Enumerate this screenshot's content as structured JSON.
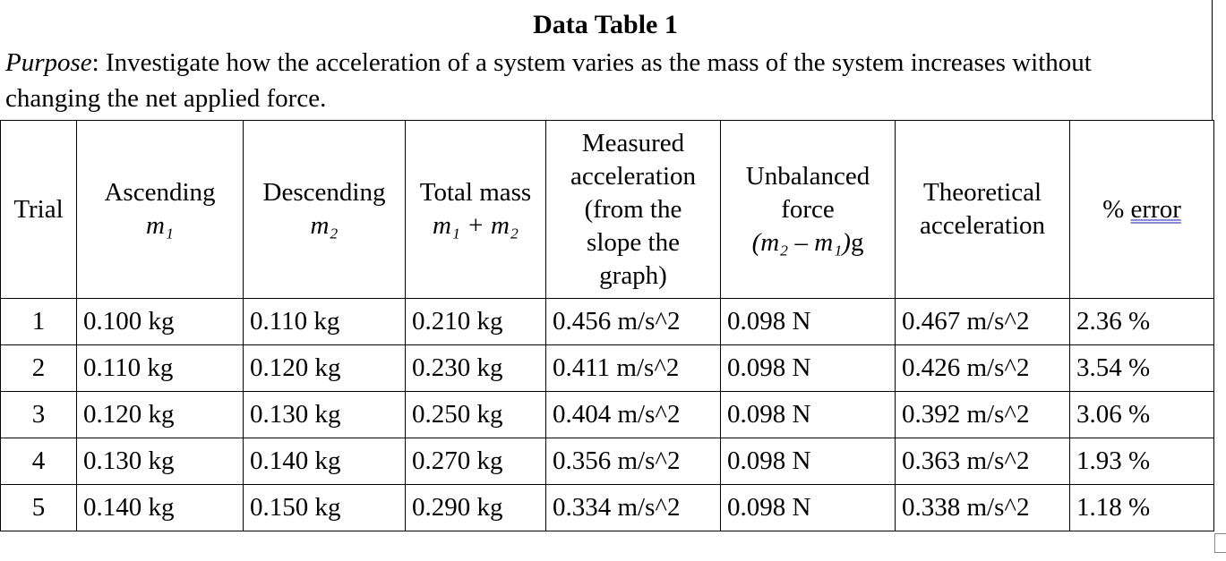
{
  "title": "Data Table 1",
  "purpose": {
    "label": "Purpose",
    "text": ": Investigate how the acceleration of a system varies as the mass of the system increases without changing the net applied force."
  },
  "headers": {
    "trial": "Trial",
    "ascending": {
      "line1": "Ascending",
      "symbol": "m₁"
    },
    "descending": {
      "line1": "Descending",
      "symbol": "m₂"
    },
    "total": {
      "line1": "Total mass",
      "symbol": "m₁ + m₂"
    },
    "measured": {
      "line1": "Measured",
      "line2": "acceleration",
      "line3": "(from the",
      "line4": "slope the",
      "line5": "graph)"
    },
    "unbalanced": {
      "line1": "Unbalanced",
      "line2": "force",
      "formula_a": "(m₂ – m₁)",
      "formula_g": "g"
    },
    "theoretical": {
      "line1": "Theoretical",
      "line2": "acceleration"
    },
    "error": {
      "pct": "% ",
      "word": "error"
    }
  },
  "rows": [
    {
      "trial": "1",
      "m1": "0.100 kg",
      "m2": "0.110 kg",
      "total": "0.210 kg",
      "measured": "0.456 m/s^2",
      "force": "0.098 N",
      "theoretical": "0.467 m/s^2",
      "error": "2.36 %"
    },
    {
      "trial": "2",
      "m1": "0.110 kg",
      "m2": "0.120 kg",
      "total": "0.230 kg",
      "measured": "0.411 m/s^2",
      "force": "0.098 N",
      "theoretical": "0.426 m/s^2",
      "error": "3.54 %"
    },
    {
      "trial": "3",
      "m1": "0.120 kg",
      "m2": "0.130 kg",
      "total": "0.250 kg",
      "measured": "0.404 m/s^2",
      "force": "0.098 N",
      "theoretical": "0.392 m/s^2",
      "error": "3.06 %"
    },
    {
      "trial": "4",
      "m1": "0.130 kg",
      "m2": "0.140 kg",
      "total": "0.270 kg",
      "measured": "0.356 m/s^2",
      "force": "0.098 N",
      "theoretical": "0.363 m/s^2",
      "error": "1.93 %"
    },
    {
      "trial": "5",
      "m1": "0.140 kg",
      "m2": "0.150 kg",
      "total": "0.290 kg",
      "measured": "0.334 m/s^2",
      "force": "0.098 N",
      "theoretical": "0.338 m/s^2",
      "error": "1.18 %"
    }
  ]
}
